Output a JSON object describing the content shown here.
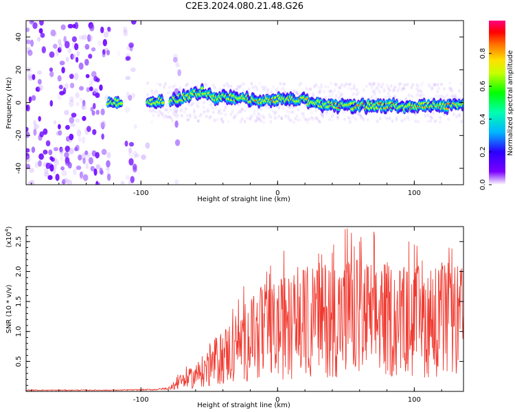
{
  "title": "C2E3.2024.080.21.48.G26",
  "chart_data": [
    {
      "type": "heatmap",
      "xlabel": "Height of straight line (km)",
      "ylabel": "Frequency (Hz)",
      "xlim": [
        -184,
        136
      ],
      "ylim": [
        -50,
        50
      ],
      "x_tick_labels": [
        "-100",
        "0",
        "100"
      ],
      "y_tick_labels": [
        "40",
        "20",
        "0",
        "-20",
        "-40"
      ],
      "colorbar": {
        "label": "Normalized spectral amplitude",
        "range": [
          0,
          1
        ],
        "tick_labels": [
          "0.0",
          "0.2",
          "0.4",
          "0.6",
          "0.8"
        ]
      },
      "ridge": [
        {
          "x": -124,
          "y": 0
        },
        {
          "x": -110,
          "y": 0
        },
        {
          "x": -95,
          "y": 0
        },
        {
          "x": -80,
          "y": 1
        },
        {
          "x": -65,
          "y": 4
        },
        {
          "x": -55,
          "y": 7
        },
        {
          "x": -45,
          "y": 3
        },
        {
          "x": -30,
          "y": 3
        },
        {
          "x": -15,
          "y": 1
        },
        {
          "x": 0,
          "y": 2
        },
        {
          "x": 10,
          "y": 3
        },
        {
          "x": 25,
          "y": 0
        },
        {
          "x": 40,
          "y": -2
        },
        {
          "x": 60,
          "y": -2
        },
        {
          "x": 80,
          "y": -2
        },
        {
          "x": 100,
          "y": -2
        },
        {
          "x": 120,
          "y": -2
        },
        {
          "x": 136,
          "y": -2
        }
      ]
    },
    {
      "type": "line",
      "xlabel": "Height of straight line (km)",
      "ylabel": "SNR (10 * v/v)",
      "y_scale_label": "(x10",
      "y_scale_exp": "4",
      "y_scale_suffix": ")",
      "xlim": [
        -184,
        136
      ],
      "ylim": [
        0,
        2.75
      ],
      "x_tick_labels": [
        "-100",
        "0",
        "100"
      ],
      "y_tick_labels": [
        "0.5",
        "1.0",
        "1.5",
        "2.0",
        "2.5"
      ],
      "series": [
        {
          "color": "#f03a30",
          "envelope": [
            {
              "x": -184,
              "y": 0.02
            },
            {
              "x": -120,
              "y": 0.02
            },
            {
              "x": -90,
              "y": 0.03
            },
            {
              "x": -80,
              "y": 0.05
            },
            {
              "x": -70,
              "y": 0.2
            },
            {
              "x": -60,
              "y": 0.3
            },
            {
              "x": -50,
              "y": 0.5
            },
            {
              "x": -40,
              "y": 0.7
            },
            {
              "x": -30,
              "y": 0.9
            },
            {
              "x": -20,
              "y": 1.1
            },
            {
              "x": 0,
              "y": 1.25
            },
            {
              "x": 20,
              "y": 1.4
            },
            {
              "x": 40,
              "y": 1.5
            },
            {
              "x": 60,
              "y": 1.5
            },
            {
              "x": 80,
              "y": 1.45
            },
            {
              "x": 100,
              "y": 1.4
            },
            {
              "x": 120,
              "y": 1.45
            },
            {
              "x": 136,
              "y": 1.4
            }
          ],
          "peaks": [
            {
              "x": -73,
              "y": 0.28
            },
            {
              "x": -29,
              "y": 1.1
            },
            {
              "x": -18,
              "y": 1.25
            },
            {
              "x": -8,
              "y": 2.0
            },
            {
              "x": 30,
              "y": 2.3
            },
            {
              "x": 41,
              "y": 2.45
            },
            {
              "x": 51,
              "y": 2.72
            },
            {
              "x": 60,
              "y": 2.5
            },
            {
              "x": 78,
              "y": 2.1
            },
            {
              "x": 96,
              "y": 2.5
            },
            {
              "x": 100,
              "y": 2.45
            },
            {
              "x": 120,
              "y": 1.9
            },
            {
              "x": 134,
              "y": 1.85
            }
          ]
        }
      ]
    }
  ]
}
